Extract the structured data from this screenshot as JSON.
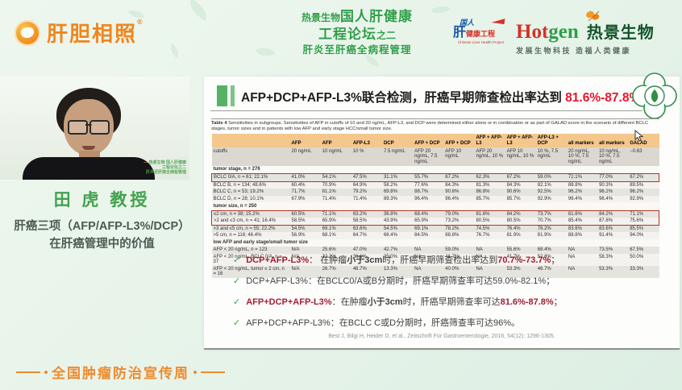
{
  "colors": {
    "brand_orange": "#f0861c",
    "brand_green": "#2f9e49",
    "title_red": "#e8152c",
    "bullet_red": "#a31e33",
    "table_header_bg": "#f4c78c",
    "highlight_box": "#b23327"
  },
  "top_banner": {
    "left_logo": {
      "text": "肝胆相照",
      "reg": "®"
    },
    "center": {
      "line1_small": "热景生物",
      "line1_big": "国人肝健康",
      "line2_big": "工程论坛",
      "line2_small": "之二",
      "line3": "肝炎至肝癌全病程管理"
    },
    "emblem": {
      "cn_top": "国人",
      "cn_liver": "肝",
      "cn_rest": "健康工程",
      "en": "Chinese Liver Health Project"
    },
    "hotgen": {
      "latin_red": "Hot",
      "latin_green": "gen",
      "cn": "热景生物",
      "slogan": "发展生物科技  造福人类健康"
    }
  },
  "speaker_panel": {
    "name": "田  虎 教授",
    "topic_line1": "肝癌三项（AFP/AFP-L3%/DCP）",
    "topic_line2": "在肝癌管理中的价值",
    "video_watermark_line1": "热景生物 国人肝健康",
    "video_watermark_line2": "工程论坛之二",
    "video_watermark_line3": "肝炎至肝癌全病程管理"
  },
  "slide": {
    "title_prefix": "AFP+DCP+AFP-L3%联合检测，肝癌早期筛查检出率达到 ",
    "title_highlight": "81.6%-87.8%",
    "table": {
      "caption_label": "Table 4",
      "caption_text": "  Sensitivities in subgroups. Sensitivities of AFP in cutoffs of 10 and 20 ng/mL, AFP-L3, and DCP were determined either alone or in combination or as part of GALAD score in the scenario of different BCLC stages, tumor sizes and in patients with low AFP and early stage HCC/small tumor size.",
      "columns": [
        "",
        "AFP",
        "AFP",
        "AFP-L3",
        "DCP",
        "AFP + DCP",
        "AFP + DCP",
        "AFP + AFP-L3",
        "AFP + AFP-L3",
        "AFP-L3 + DCP",
        "all markers",
        "all markers",
        "GALAD"
      ],
      "cutoffs": [
        "cutoffs",
        "20 ng/mL",
        "10 ng/mL",
        "10 %",
        "7.5 ng/mL",
        "AFP 20 ng/mL, 7.5 ng/mL",
        "AFP 10 ng/mL",
        "AFP 20 ng/mL, 10 %",
        "AFP 10 ng/mL, 10 %",
        "10 %, 7.5 ng/mL",
        "20 ng/mL, 10 %, 7.5 ng/mL",
        "10 ng/mL, 10 %, 7.5 ng/mL",
        "−0.63"
      ],
      "sections": [
        {
          "label": "tumor stage, n = 276",
          "rows": [
            {
              "hl": "single",
              "cells": [
                "BCLC 0/A, n = 61; 22.1%",
                "41.0%",
                "54.1%",
                "47.5%",
                "31.1%",
                "55.7%",
                "67.2%",
                "62.3%",
                "67.2%",
                "59.0%",
                "72.1%",
                "77.0%",
                "67.2%"
              ]
            },
            {
              "cells": [
                "BCLC B, n = 134; 48.6%",
                "60.4%",
                "70.9%",
                "64.9%",
                "58.2%",
                "77.6%",
                "84.3%",
                "81.3%",
                "84.3%",
                "82.1%",
                "88.8%",
                "90.3%",
                "89.5%"
              ]
            },
            {
              "cells": [
                "BCLC C, n = 53; 19.2%",
                "71.7%",
                "81.1%",
                "79.2%",
                "69.8%",
                "88.7%",
                "90.6%",
                "86.8%",
                "90.6%",
                "92.5%",
                "96.2%",
                "96.2%",
                "96.2%"
              ]
            },
            {
              "cells": [
                "BCLC D, n = 28; 10.1%",
                "67.9%",
                "71.4%",
                "71.4%",
                "89.3%",
                "96.4%",
                "96.4%",
                "85.7%",
                "85.7%",
                "92.9%",
                "96.4%",
                "96.4%",
                "92.9%"
              ]
            }
          ]
        },
        {
          "label": "tumor size, n = 250",
          "rows": [
            {
              "hl": "top",
              "cells": [
                "≤2 cm, n = 38; 15.2%",
                "60.5%",
                "71.1%",
                "63.2%",
                "36.8%",
                "68.4%",
                "79.0%",
                "81.6%",
                "84.2%",
                "73.7%",
                "81.6%",
                "84.2%",
                "71.1%"
              ]
            },
            {
              "hl": "bottom",
              "cells": [
                ">2 and ≤3 cm, n = 41; 16.4%",
                "58.5%",
                "65.9%",
                "58.5%",
                "43.9%",
                "65.9%",
                "73.2%",
                "80.5%",
                "80.5%",
                "70.7%",
                "85.4%",
                "87.8%",
                "75.6%"
              ]
            },
            {
              "cells": [
                ">3 and ≤5 cm, n = 55; 22.2%",
                "54.5%",
                "69.1%",
                "63.6%",
                "54.5%",
                "69.1%",
                "78.2%",
                "74.5%",
                "76.4%",
                "78.2%",
                "83.6%",
                "83.6%",
                "85.5%"
              ]
            },
            {
              "cells": [
                ">5 cm, n = 116; 46.4%",
                "56.9%",
                "68.1%",
                "64.7%",
                "66.4%",
                "84.5%",
                "88.8%",
                "76.7%",
                "81.9%",
                "81.9%",
                "88.8%",
                "91.4%",
                "94.0%"
              ]
            }
          ]
        },
        {
          "label": "low AFP and early stage/small tumor size",
          "rows": [
            {
              "cells": [
                "AFP < 20 ng/mL, n = 123",
                "N/A",
                "25.6%",
                "47.0%",
                "42.7%",
                "NA",
                "59.0%",
                "NA",
                "55.6%",
                "68.4%",
                "NA",
                "73.5%",
                "67.5%"
              ]
            },
            {
              "cells": [
                "AFP < 20 ng/mL, BCLC 0/A, n = 37",
                "N/A",
                "22.2%",
                "36.1%",
                "25.0%",
                "NA",
                "41.7%",
                "NA",
                "41.7%",
                "52.8%",
                "NA",
                "58.3%",
                "50.0%"
              ]
            },
            {
              "cells": [
                "AFP < 20 ng/mL, tumor ≤ 2 cm, n = 16",
                "N/A",
                "26.7%",
                "46.7%",
                "13.3%",
                "NA",
                "40.0%",
                "NA",
                "53.3%",
                "46.7%",
                "NA",
                "53.3%",
                "33.3%"
              ]
            }
          ]
        }
      ]
    },
    "check_glyph": "✓",
    "bullets": [
      {
        "segments": [
          {
            "text": "DCP+AFP-L3%",
            "style": "red-bold"
          },
          {
            "text": "：  在肿瘤",
            "style": "normal"
          },
          {
            "text": "小于3cm",
            "style": "bold"
          },
          {
            "text": "时，肝癌早期筛查检出率达到",
            "style": "normal"
          },
          {
            "text": "70.7%-73.7%",
            "style": "red-bold"
          },
          {
            "text": "；",
            "style": "normal"
          }
        ]
      },
      {
        "segments": [
          {
            "text": "DCP+AFP-L3%：在BCLC0/A或B分期时，肝癌早期筛查率可达59.0%-82.1%；",
            "style": "normal"
          }
        ]
      },
      {
        "segments": [
          {
            "text": "AFP+DCP+AFP-L3%",
            "style": "red-bold"
          },
          {
            "text": "：在肿瘤",
            "style": "normal"
          },
          {
            "text": "小于3cm",
            "style": "bold"
          },
          {
            "text": "时，肝癌早期筛查率可达",
            "style": "normal"
          },
          {
            "text": "81.6%-87.8%",
            "style": "red-bold"
          },
          {
            "text": "；",
            "style": "normal"
          }
        ]
      },
      {
        "segments": [
          {
            "text": "AFP+DCP+AFP-L3%：在BCLC C或D分期时，肝癌筛查率可达96%。",
            "style": "normal"
          }
        ]
      }
    ],
    "reference": "Best J, Bilgi H, Heider D, et al., Zeitschrift Für Gastroenterologie, 2016, 54(12): 1296-1305."
  },
  "bottom_banner": {
    "text": "全国肿瘤防治宣传周"
  }
}
